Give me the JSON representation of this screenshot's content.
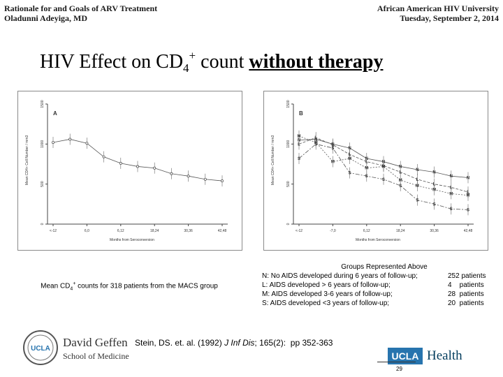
{
  "header": {
    "left_line1": "Rationale for and Goals of ARV Treatment",
    "left_line2": "Oladunni Adeyiga, MD",
    "right_line1": "African American HIV University",
    "right_line2": "Tuesday, September 2, 2014"
  },
  "title": {
    "pre": "HIV Effect on CD",
    "sub": "4",
    "sup": "+",
    "mid": " count ",
    "emphasis": "without therapy"
  },
  "panel_a": {
    "caption_pre": "Mean CD",
    "caption_sub": "4",
    "caption_sup": "+",
    "caption_post": " counts for 318 patients from the MACS group"
  },
  "panel_b": {
    "legend_title": "Groups Represented Above",
    "legend_rows": [
      {
        "desc": "N:  No AIDS developed during 6 years of follow-up;",
        "count": "252 patients"
      },
      {
        "desc": "L:  AIDS developed > 6 years of follow-up;",
        "count": "4    patients"
      },
      {
        "desc": "M:  AIDS developed 3-6 years of follow-up;",
        "count": "28  patients"
      },
      {
        "desc": "S:  AIDS developed <3 years of follow-up;",
        "count": "20  patients"
      }
    ]
  },
  "citation": {
    "pre": "Stein, DS. et. al. (1992) ",
    "journal": "J Inf Dis",
    "post": "; 165(2):  pp 352-363"
  },
  "logos": {
    "left_org": "David Geffen",
    "left_school": "School of Medicine",
    "left_seal": "UCLA",
    "right_box": "UCLA",
    "right_text": "Health"
  },
  "page_number": "29",
  "chart_data": [
    {
      "type": "line",
      "panel_label": "A",
      "xlabel": "Months from Seroconversion",
      "ylabel": "Mean CD4+ Cell Number / mm3",
      "ylim": [
        0,
        1500
      ],
      "yticks": [
        "0",
        "500",
        "1000",
        "1500"
      ],
      "xticks": [
        "<-12",
        "6,0",
        "6,12",
        "18,24",
        "30,36",
        "42,48"
      ],
      "x": [
        -12,
        -6,
        0,
        6,
        12,
        18,
        24,
        30,
        36,
        42,
        48
      ],
      "series": [
        {
          "values": [
            1020,
            1060,
            1010,
            840,
            760,
            720,
            700,
            630,
            600,
            560,
            540
          ]
        }
      ]
    },
    {
      "type": "line",
      "panel_label": "B",
      "xlabel": "Months from Seroconversion",
      "ylabel": "Mean CD4+ Cell Number / mm3",
      "ylim": [
        0,
        1500
      ],
      "yticks": [
        "0",
        "500",
        "1000",
        "1500"
      ],
      "xticks": [
        "<-12",
        "-7,0",
        "6,12",
        "18,24",
        "30,36",
        "42,48"
      ],
      "x": [
        -12,
        -6,
        0,
        6,
        12,
        18,
        24,
        30,
        36,
        42,
        48
      ],
      "series": [
        {
          "name": "N",
          "marker": "N",
          "values": [
            1050,
            1060,
            1000,
            950,
            820,
            780,
            720,
            680,
            650,
            600,
            580
          ]
        },
        {
          "name": "L",
          "marker": "L",
          "values": [
            1000,
            1080,
            990,
            870,
            780,
            730,
            650,
            560,
            500,
            460,
            400
          ]
        },
        {
          "name": "M",
          "marker": "M",
          "values": [
            1100,
            1020,
            780,
            820,
            700,
            720,
            550,
            480,
            430,
            380,
            360
          ]
        },
        {
          "name": "S",
          "marker": "S",
          "values": [
            820,
            1000,
            950,
            640,
            600,
            560,
            480,
            300,
            250,
            190,
            180
          ]
        }
      ]
    }
  ]
}
